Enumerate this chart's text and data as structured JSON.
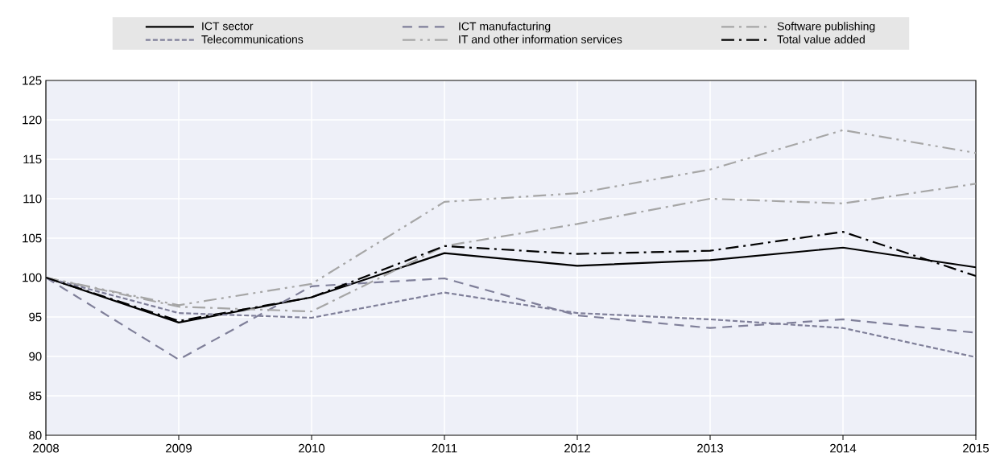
{
  "chart_data": {
    "type": "line",
    "x": [
      2008,
      2009,
      2010,
      2011,
      2012,
      2013,
      2014,
      2015
    ],
    "xlim": [
      2008,
      2015
    ],
    "xticks": [
      2008,
      2009,
      2010,
      2011,
      2012,
      2013,
      2014,
      2015
    ],
    "ylim": [
      80,
      125
    ],
    "yticks": [
      80,
      85,
      90,
      95,
      100,
      105,
      110,
      115,
      120,
      125
    ],
    "grid": true,
    "legend": "top",
    "marker": "none",
    "series": [
      {
        "name": "ICT sector",
        "color": "#000000",
        "line_style": "solid",
        "values": [
          100,
          94.3,
          97.5,
          103.1,
          101.5,
          102.2,
          103.8,
          101.3
        ]
      },
      {
        "name": "ICT manufacturing",
        "color": "#7f7f99",
        "line_style": "dashed",
        "values": [
          100,
          89.6,
          98.9,
          99.9,
          95.2,
          93.6,
          94.7,
          93.0
        ]
      },
      {
        "name": "Software publishing",
        "color": "#a6a6a6",
        "line_style": "dashdot",
        "values": [
          100,
          96.3,
          95.7,
          104.0,
          106.8,
          110.0,
          109.4,
          111.9
        ]
      },
      {
        "name": "Telecommunications",
        "color": "#7f7f99",
        "line_style": "shortdash",
        "values": [
          100,
          95.5,
          94.9,
          98.1,
          95.5,
          94.7,
          93.6,
          89.9
        ]
      },
      {
        "name": "IT and other information services",
        "color": "#a6a6a6",
        "line_style": "dashdotdot",
        "values": [
          100,
          96.5,
          99.2,
          109.6,
          110.7,
          113.7,
          118.7,
          115.8
        ]
      },
      {
        "name": "Total value added",
        "color": "#000000",
        "line_style": "dashdot",
        "values": [
          100,
          94.5,
          97.5,
          104.0,
          103.0,
          103.4,
          105.8,
          100.2
        ]
      }
    ]
  }
}
